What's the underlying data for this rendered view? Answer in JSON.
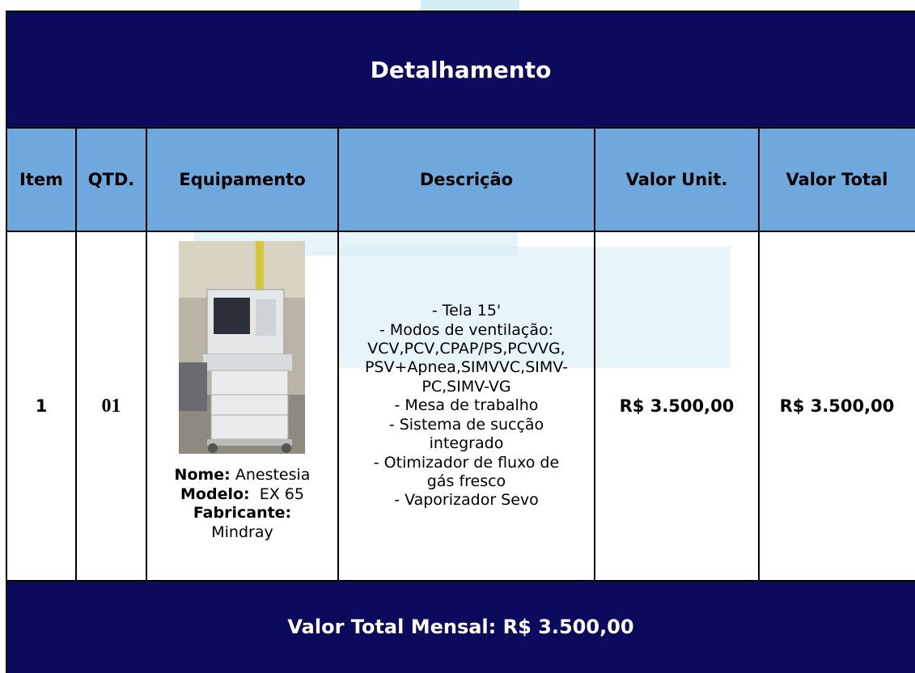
{
  "header": {
    "title": "Detalhamento"
  },
  "table": {
    "columns": [
      "Item",
      "QTD.",
      "Equipamento",
      "Descrição",
      "Valor Unit.",
      "Valor Total"
    ],
    "rows": [
      {
        "item": "1",
        "qty": "01",
        "equipment": {
          "name_label": "Nome:",
          "name": "Anestesia",
          "model_label": "Modelo:",
          "model": "EX 65",
          "manufacturer_label": "Fabricante:",
          "manufacturer": "Mindray"
        },
        "description": [
          "- Tela 15'",
          "- Modos de ventilação:",
          "VCV,PCV,CPAP/PS,PCVVG,",
          "PSV+Apnea,SIMVVC,SIMV-",
          "PC,SIMV-VG",
          "- Mesa de trabalho",
          "- Sistema de sucção",
          "integrado",
          "- Otimizador de fluxo de",
          "gás fresco",
          "- Vaporizador Sevo"
        ],
        "unit_value": "R$ 3.500,00",
        "total_value": "R$ 3.500,00"
      }
    ]
  },
  "footer": {
    "text": "Valor Total Mensal: R$ 3.500,00"
  }
}
